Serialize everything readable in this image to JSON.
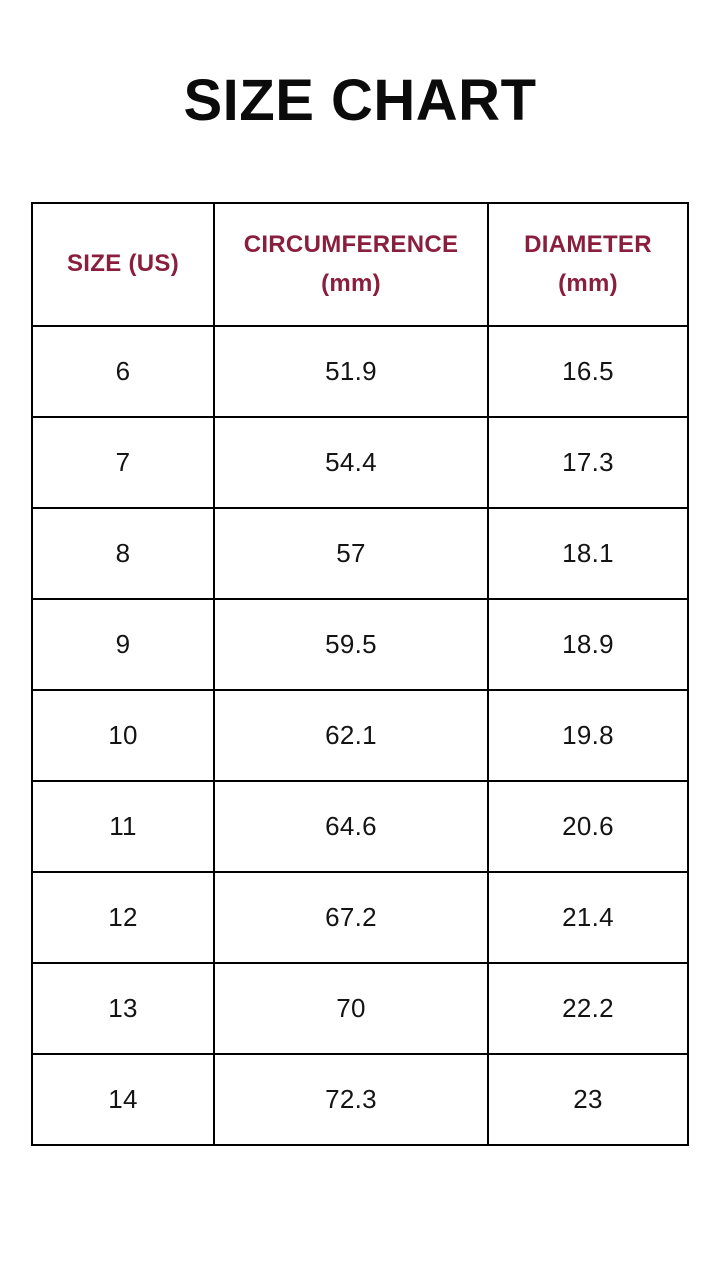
{
  "title": "SIZE CHART",
  "colors": {
    "background": "#ffffff",
    "title_text": "#0b0b0b",
    "header_text": "#8a1f3d",
    "body_text": "#141414",
    "border": "#000000"
  },
  "table": {
    "headers": [
      {
        "id": "size-us",
        "lines": [
          "SIZE (US)"
        ]
      },
      {
        "id": "circumference-mm",
        "lines": [
          "CIRCUMFERENCE",
          "(mm)"
        ]
      },
      {
        "id": "diameter-mm",
        "lines": [
          "DIAMETER",
          "(mm)"
        ]
      }
    ],
    "rows": [
      {
        "size": "6",
        "circumference": "51.9",
        "diameter": "16.5"
      },
      {
        "size": "7",
        "circumference": "54.4",
        "diameter": "17.3"
      },
      {
        "size": "8",
        "circumference": "57",
        "diameter": "18.1"
      },
      {
        "size": "9",
        "circumference": "59.5",
        "diameter": "18.9"
      },
      {
        "size": "10",
        "circumference": "62.1",
        "diameter": "19.8"
      },
      {
        "size": "11",
        "circumference": "64.6",
        "diameter": "20.6"
      },
      {
        "size": "12",
        "circumference": "67.2",
        "diameter": "21.4"
      },
      {
        "size": "13",
        "circumference": "70",
        "diameter": "22.2"
      },
      {
        "size": "14",
        "circumference": "72.3",
        "diameter": "23"
      }
    ]
  },
  "chart_data": {
    "type": "table",
    "title": "SIZE CHART",
    "columns": [
      "SIZE (US)",
      "CIRCUMFERENCE (mm)",
      "DIAMETER (mm)"
    ],
    "rows": [
      [
        6,
        51.9,
        16.5
      ],
      [
        7,
        54.4,
        17.3
      ],
      [
        8,
        57,
        18.1
      ],
      [
        9,
        59.5,
        18.9
      ],
      [
        10,
        62.1,
        19.8
      ],
      [
        11,
        64.6,
        20.6
      ],
      [
        12,
        67.2,
        21.4
      ],
      [
        13,
        70,
        22.2
      ],
      [
        14,
        72.3,
        23
      ]
    ],
    "layout": "single centered table below large bold title, black grid borders, maroon column headers"
  }
}
